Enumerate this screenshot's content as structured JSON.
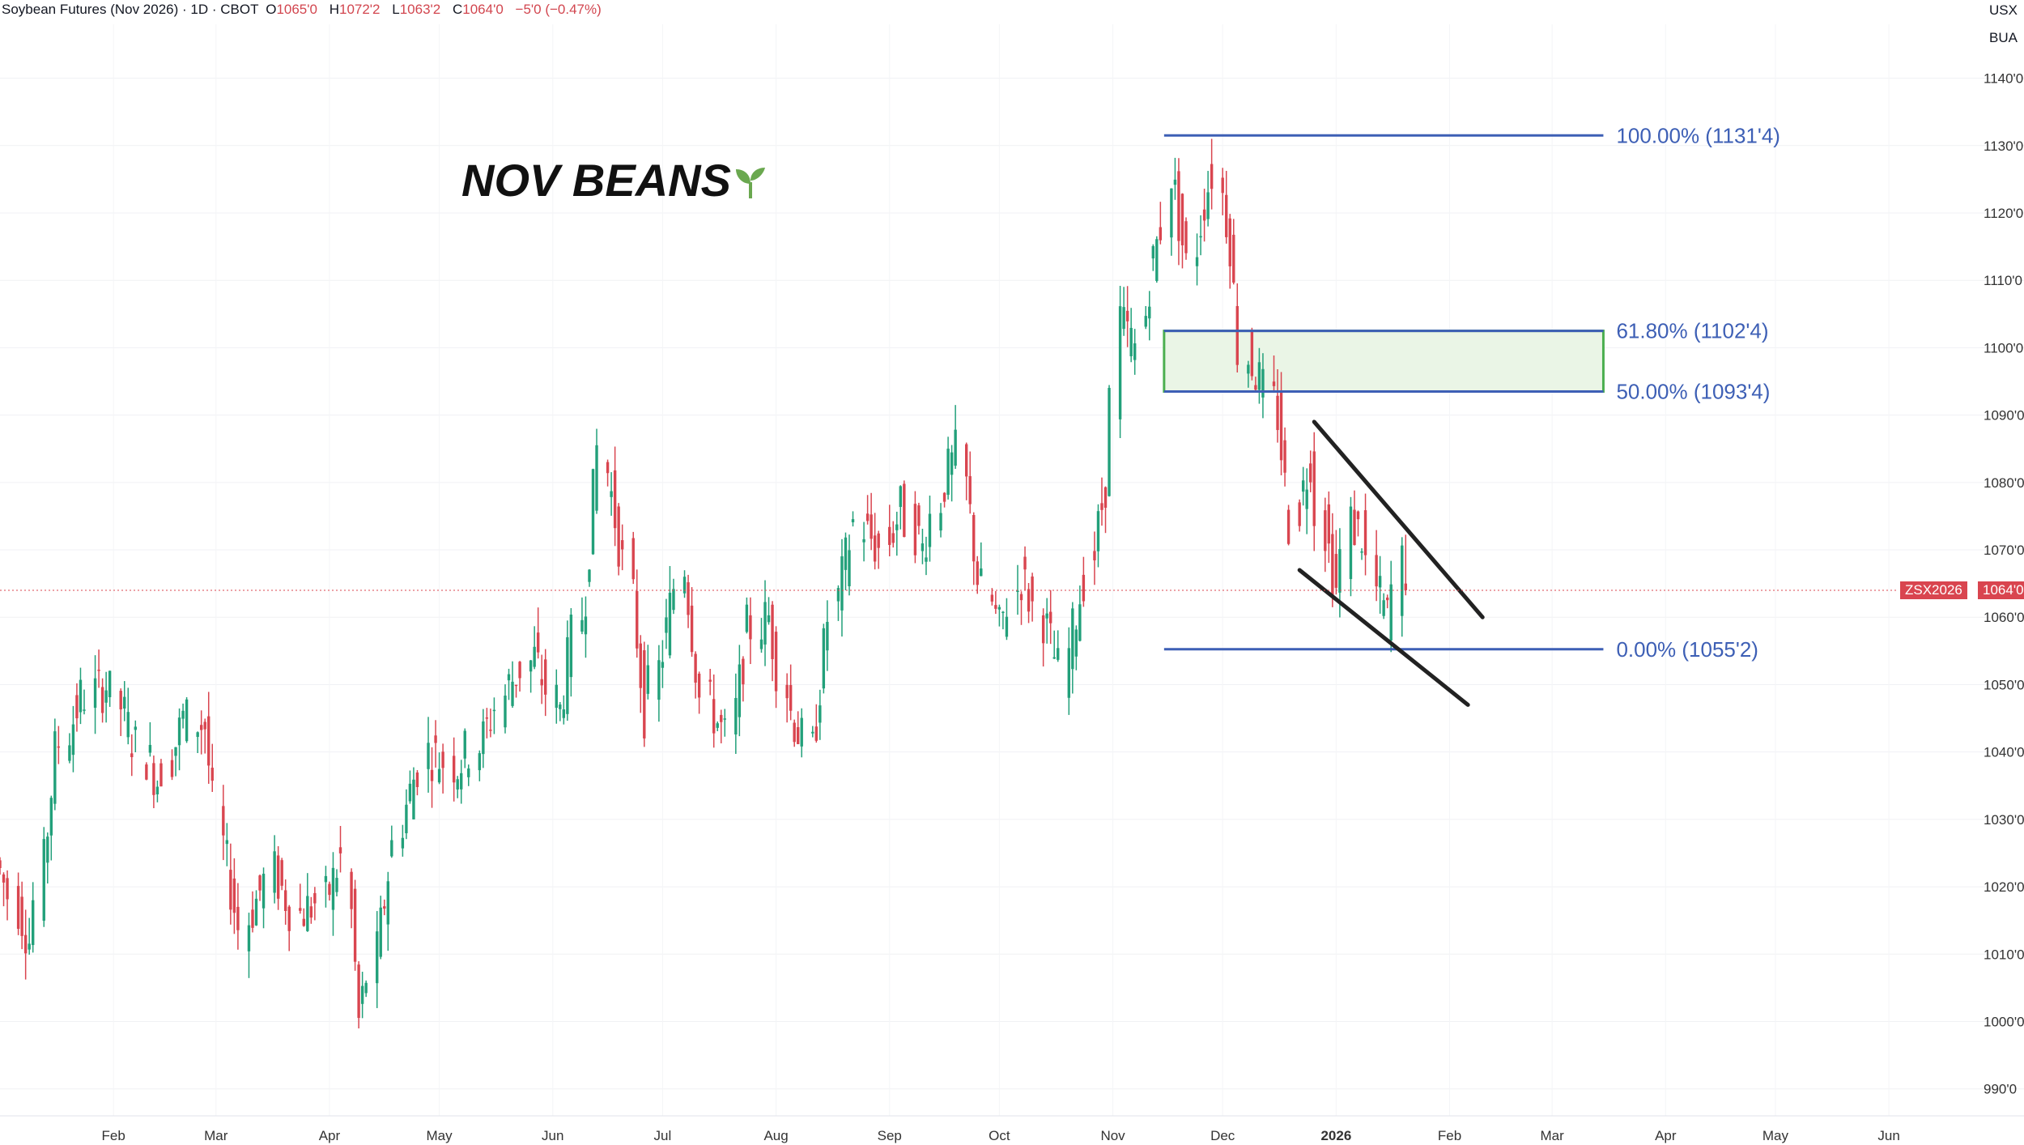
{
  "header": {
    "title": "Soybean Futures (Nov 2026) · 1D · CBOT",
    "open_label": "O",
    "open": "1065'0",
    "high_label": "H",
    "high": "1072'2",
    "low_label": "L",
    "low": "1063'2",
    "close_label": "C",
    "close": "1064'0",
    "change": "−5'0 (−0.47%)"
  },
  "units": {
    "currency": "USX",
    "unit": "BUA"
  },
  "brand": {
    "text": "NOV BEANS",
    "icon": "sprout-icon",
    "icon_color": "#6aa84f"
  },
  "last_price": {
    "symbol": "ZSX2026",
    "value": "1064'0",
    "raw": 1064.0
  },
  "colors": {
    "up": "#22a07a",
    "down": "#d9454f",
    "fib": "#3d5fb5",
    "zone_fill": "#eaf5e6",
    "zone_border": "#4caf50",
    "channel": "#222222"
  },
  "chart_data": {
    "type": "candlestick",
    "title": "Soybean Futures (Nov 2026) · 1D · CBOT",
    "ylim": [
      986,
      1148
    ],
    "y_ticks": [
      {
        "value": 990,
        "label": "990'0"
      },
      {
        "value": 1000,
        "label": "1000'0"
      },
      {
        "value": 1010,
        "label": "1010'0"
      },
      {
        "value": 1020,
        "label": "1020'0"
      },
      {
        "value": 1030,
        "label": "1030'0"
      },
      {
        "value": 1040,
        "label": "1040'0"
      },
      {
        "value": 1050,
        "label": "1050'0"
      },
      {
        "value": 1060,
        "label": "1060'0"
      },
      {
        "value": 1070,
        "label": "1070'0"
      },
      {
        "value": 1080,
        "label": "1080'0"
      },
      {
        "value": 1090,
        "label": "1090'0"
      },
      {
        "value": 1100,
        "label": "1100'0"
      },
      {
        "value": 1110,
        "label": "1110'0"
      },
      {
        "value": 1120,
        "label": "1120'0"
      },
      {
        "value": 1130,
        "label": "1130'0"
      },
      {
        "value": 1140,
        "label": "1140'0"
      }
    ],
    "x_ticks": [
      {
        "label": "Feb",
        "date": "2025-02-01",
        "bold": false
      },
      {
        "label": "Mar",
        "date": "2025-03-01",
        "bold": false
      },
      {
        "label": "Apr",
        "date": "2025-04-01",
        "bold": false
      },
      {
        "label": "May",
        "date": "2025-05-01",
        "bold": false
      },
      {
        "label": "Jun",
        "date": "2025-06-01",
        "bold": false
      },
      {
        "label": "Jul",
        "date": "2025-07-01",
        "bold": false
      },
      {
        "label": "Aug",
        "date": "2025-08-01",
        "bold": false
      },
      {
        "label": "Sep",
        "date": "2025-09-01",
        "bold": false
      },
      {
        "label": "Oct",
        "date": "2025-10-01",
        "bold": false
      },
      {
        "label": "Nov",
        "date": "2025-11-01",
        "bold": false
      },
      {
        "label": "Dec",
        "date": "2025-12-01",
        "bold": false
      },
      {
        "label": "2026",
        "date": "2026-01-01",
        "bold": true
      },
      {
        "label": "Feb",
        "date": "2026-02-01",
        "bold": false
      },
      {
        "label": "Mar",
        "date": "2026-03-01",
        "bold": false
      },
      {
        "label": "Apr",
        "date": "2026-04-01",
        "bold": false
      },
      {
        "label": "May",
        "date": "2026-05-01",
        "bold": false
      },
      {
        "label": "Jun",
        "date": "2026-06-01",
        "bold": false
      }
    ],
    "xlim": [
      "2025-01-01",
      "2026-06-18"
    ],
    "anchors": [
      [
        "2025-01-01",
        1024,
        1028
      ],
      [
        "2025-01-10",
        1012,
        1006
      ],
      [
        "2025-01-17",
        1040,
        1036
      ],
      [
        "2025-01-24",
        1048,
        1044
      ],
      [
        "2025-01-31",
        1050,
        1048
      ],
      [
        "2025-02-07",
        1042,
        1044
      ],
      [
        "2025-02-14",
        1036,
        1040
      ],
      [
        "2025-02-21",
        1045,
        1048
      ],
      [
        "2025-02-27",
        1044,
        1040
      ],
      [
        "2025-03-04",
        1026,
        1018
      ],
      [
        "2025-03-10",
        1014,
        1012
      ],
      [
        "2025-03-18",
        1022,
        1024
      ],
      [
        "2025-03-25",
        1016,
        1014
      ],
      [
        "2025-04-01",
        1018,
        1020
      ],
      [
        "2025-04-06",
        1024,
        1015
      ],
      [
        "2025-04-10",
        1000,
        995
      ],
      [
        "2025-04-15",
        1010,
        1016
      ],
      [
        "2025-04-22",
        1030,
        1034
      ],
      [
        "2025-04-29",
        1040,
        1038
      ],
      [
        "2025-05-07",
        1038,
        1030
      ],
      [
        "2025-05-14",
        1042,
        1036
      ],
      [
        "2025-05-21",
        1050,
        1058
      ],
      [
        "2025-05-28",
        1054,
        1052
      ],
      [
        "2025-06-04",
        1046,
        1050
      ],
      [
        "2025-06-11",
        1064,
        1070
      ],
      [
        "2025-06-16",
        1085,
        1080
      ],
      [
        "2025-06-22",
        1068,
        1062
      ],
      [
        "2025-06-27",
        1046,
        1044
      ],
      [
        "2025-07-03",
        1058,
        1064
      ],
      [
        "2025-07-08",
        1068,
        1062
      ],
      [
        "2025-07-14",
        1048,
        1044
      ],
      [
        "2025-07-20",
        1042,
        1044
      ],
      [
        "2025-07-25",
        1058,
        1062
      ],
      [
        "2025-07-31",
        1060,
        1056
      ],
      [
        "2025-08-06",
        1046,
        1044
      ],
      [
        "2025-08-12",
        1040,
        1042
      ],
      [
        "2025-08-17",
        1060,
        1068
      ],
      [
        "2025-08-24",
        1074,
        1078
      ],
      [
        "2025-08-30",
        1070,
        1076
      ],
      [
        "2025-09-05",
        1076,
        1072
      ],
      [
        "2025-09-11",
        1070,
        1066
      ],
      [
        "2025-09-17",
        1080,
        1086
      ],
      [
        "2025-09-21",
        1084,
        1078
      ],
      [
        "2025-09-26",
        1066,
        1062
      ],
      [
        "2025-10-02",
        1058,
        1062
      ],
      [
        "2025-10-08",
        1066,
        1070
      ],
      [
        "2025-10-14",
        1060,
        1056
      ],
      [
        "2025-10-20",
        1052,
        1056
      ],
      [
        "2025-10-26",
        1066,
        1072
      ],
      [
        "2025-10-31",
        1080,
        1094
      ],
      [
        "2025-11-04",
        1104,
        1110
      ],
      [
        "2025-11-08",
        1100,
        1096
      ],
      [
        "2025-11-12",
        1110,
        1114
      ],
      [
        "2025-11-15",
        1118,
        1126
      ],
      [
        "2025-11-18",
        1126,
        1120
      ],
      [
        "2025-11-22",
        1112,
        1116
      ],
      [
        "2025-11-27",
        1122,
        1126
      ],
      [
        "2025-11-30",
        1126,
        1124
      ],
      [
        "2025-12-04",
        1116,
        1110
      ],
      [
        "2025-12-08",
        1100,
        1096
      ],
      [
        "2025-12-12",
        1095,
        1098
      ],
      [
        "2025-12-17",
        1090,
        1082
      ],
      [
        "2025-12-22",
        1074,
        1066
      ],
      [
        "2025-12-26",
        1084,
        1086
      ],
      [
        "2025-12-29",
        1076,
        1070
      ],
      [
        "2026-01-02",
        1064,
        1070
      ],
      [
        "2026-01-06",
        1074,
        1066
      ],
      [
        "2026-01-09",
        1072,
        1074
      ],
      [
        "2026-01-13",
        1064,
        1058
      ],
      [
        "2026-01-16",
        1060,
        1068
      ],
      [
        "2026-01-20",
        1068,
        1064
      ]
    ],
    "fib_levels": [
      {
        "label": "100.00% (1131'4)",
        "value": 1131.5
      },
      {
        "label": "61.80% (1102'4)",
        "value": 1102.5
      },
      {
        "label": "50.00% (1093'4)",
        "value": 1093.5
      },
      {
        "label": "0.00% (1055'2)",
        "value": 1055.25
      }
    ],
    "fib_start": "2025-11-15",
    "fib_end": "2026-03-15",
    "zone": {
      "from": 1093.5,
      "to": 1102.5
    },
    "channel": {
      "upper": [
        [
          "2025-12-26",
          1089
        ],
        [
          "2026-02-10",
          1060
        ]
      ],
      "lower": [
        [
          "2025-12-22",
          1067
        ],
        [
          "2026-02-06",
          1047
        ]
      ]
    },
    "last_value": 1064.0
  }
}
